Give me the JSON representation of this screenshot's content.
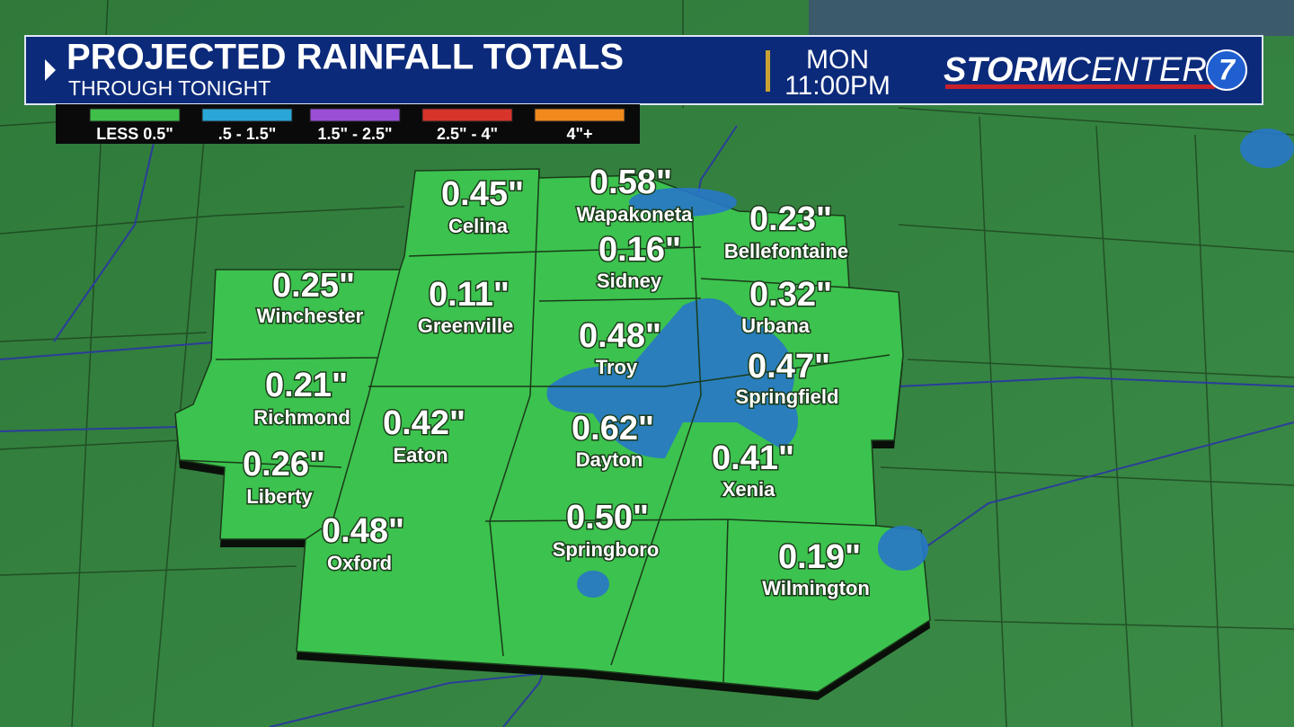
{
  "header": {
    "title": "PROJECTED RAINFALL TOTALS",
    "subtitle": "THROUGH TONIGHT",
    "day": "MON",
    "time": "11:00PM",
    "logo": {
      "bold": "STORM",
      "regular": "CENTER",
      "number": "7"
    }
  },
  "legend": [
    {
      "label": "LESS 0.5\"",
      "color": "#3fbf4a"
    },
    {
      "label": ".5 - 1.5\"",
      "color": "#2aa7d8"
    },
    {
      "label": "1.5\" - 2.5\"",
      "color": "#9a4fd6"
    },
    {
      "label": "2.5\" - 4\"",
      "color": "#d8342c"
    },
    {
      "label": "4\"+",
      "color": "#f08a1c"
    }
  ],
  "locations": [
    {
      "name": "Celina",
      "amount": "0.45\""
    },
    {
      "name": "Wapakoneta",
      "amount": "0.58\""
    },
    {
      "name": "Bellefontaine",
      "amount": "0.23\""
    },
    {
      "name": "Sidney",
      "amount": "0.16\""
    },
    {
      "name": "Winchester",
      "amount": "0.25\""
    },
    {
      "name": "Greenville",
      "amount": "0.11\""
    },
    {
      "name": "Urbana",
      "amount": "0.32\""
    },
    {
      "name": "Troy",
      "amount": "0.48\""
    },
    {
      "name": "Springfield",
      "amount": "0.47\""
    },
    {
      "name": "Richmond",
      "amount": "0.21\""
    },
    {
      "name": "Eaton",
      "amount": "0.42\""
    },
    {
      "name": "Dayton",
      "amount": "0.62\""
    },
    {
      "name": "Xenia",
      "amount": "0.41\""
    },
    {
      "name": "Liberty",
      "amount": "0.26\""
    },
    {
      "name": "Oxford",
      "amount": "0.48\""
    },
    {
      "name": "Springboro",
      "amount": "0.50\""
    },
    {
      "name": "Wilmington",
      "amount": "0.19\""
    }
  ]
}
